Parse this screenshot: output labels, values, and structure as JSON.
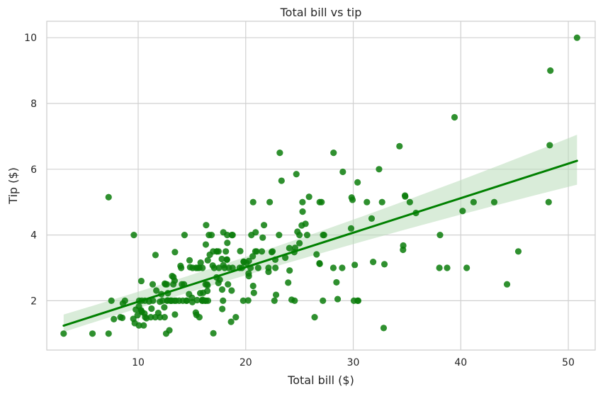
{
  "chart_data": {
    "type": "scatter",
    "title": "Total bill vs tip",
    "xlabel": "Total bill ($)",
    "ylabel": "Tip ($)",
    "xlim": [
      1.5,
      52.5
    ],
    "ylim": [
      0.5,
      10.5
    ],
    "xticks": [
      10,
      20,
      30,
      40,
      50
    ],
    "yticks": [
      2,
      4,
      6,
      8,
      10
    ],
    "grid": true,
    "point_color": "#0a7d0a",
    "line_color": "#008000",
    "band_color": "#b9dcb9",
    "points": [
      [
        3.07,
        1.0
      ],
      [
        5.75,
        1.0
      ],
      [
        7.25,
        1.0
      ],
      [
        7.25,
        5.15
      ],
      [
        7.51,
        2.0
      ],
      [
        7.74,
        1.44
      ],
      [
        8.35,
        1.5
      ],
      [
        8.52,
        1.48
      ],
      [
        8.58,
        1.92
      ],
      [
        8.77,
        2.0
      ],
      [
        9.55,
        1.45
      ],
      [
        9.6,
        4.0
      ],
      [
        9.68,
        1.32
      ],
      [
        9.78,
        1.73
      ],
      [
        9.94,
        1.56
      ],
      [
        10.07,
        1.83
      ],
      [
        10.07,
        1.25
      ],
      [
        10.09,
        2.0
      ],
      [
        10.27,
        1.71
      ],
      [
        10.29,
        2.6
      ],
      [
        10.33,
        1.67
      ],
      [
        10.34,
        2.0
      ],
      [
        10.34,
        1.66
      ],
      [
        10.51,
        1.25
      ],
      [
        10.59,
        1.61
      ],
      [
        10.63,
        2.0
      ],
      [
        10.65,
        1.5
      ],
      [
        10.77,
        1.47
      ],
      [
        11.02,
        1.98
      ],
      [
        11.17,
        1.5
      ],
      [
        11.24,
        1.76
      ],
      [
        11.35,
        2.5
      ],
      [
        11.38,
        2.0
      ],
      [
        11.59,
        1.5
      ],
      [
        11.61,
        3.39
      ],
      [
        11.69,
        2.31
      ],
      [
        11.87,
        1.63
      ],
      [
        12.02,
        1.97
      ],
      [
        12.03,
        1.5
      ],
      [
        12.16,
        2.2
      ],
      [
        12.26,
        2.0
      ],
      [
        12.43,
        1.8
      ],
      [
        12.46,
        1.5
      ],
      [
        12.48,
        2.52
      ],
      [
        12.54,
        2.5
      ],
      [
        12.6,
        1.0
      ],
      [
        12.66,
        2.5
      ],
      [
        12.69,
        2.0
      ],
      [
        12.74,
        2.01
      ],
      [
        12.76,
        2.23
      ],
      [
        12.9,
        1.1
      ],
      [
        13.0,
        2.0
      ],
      [
        13.03,
        2.0
      ],
      [
        13.13,
        2.0
      ],
      [
        13.16,
        2.75
      ],
      [
        13.27,
        2.5
      ],
      [
        13.28,
        2.72
      ],
      [
        13.37,
        2.0
      ],
      [
        13.39,
        2.61
      ],
      [
        13.42,
        1.58
      ],
      [
        13.42,
        3.48
      ],
      [
        13.51,
        2.0
      ],
      [
        13.81,
        2.0
      ],
      [
        13.94,
        3.06
      ],
      [
        14.0,
        3.0
      ],
      [
        14.07,
        2.5
      ],
      [
        14.15,
        2.0
      ],
      [
        14.26,
        2.5
      ],
      [
        14.31,
        4.0
      ],
      [
        14.48,
        2.0
      ],
      [
        14.52,
        2.0
      ],
      [
        14.73,
        2.2
      ],
      [
        14.78,
        3.23
      ],
      [
        14.83,
        3.02
      ],
      [
        15.01,
        2.09
      ],
      [
        15.04,
        1.96
      ],
      [
        15.06,
        3.0
      ],
      [
        15.36,
        1.64
      ],
      [
        15.38,
        3.0
      ],
      [
        15.42,
        1.57
      ],
      [
        15.48,
        2.02
      ],
      [
        15.53,
        3.0
      ],
      [
        15.69,
        1.5
      ],
      [
        15.69,
        3.0
      ],
      [
        15.77,
        2.23
      ],
      [
        15.81,
        3.16
      ],
      [
        15.95,
        2.0
      ],
      [
        15.98,
        2.03
      ],
      [
        15.98,
        3.0
      ],
      [
        16.0,
        2.0
      ],
      [
        16.04,
        2.24
      ],
      [
        16.21,
        2.0
      ],
      [
        16.27,
        2.5
      ],
      [
        16.29,
        3.71
      ],
      [
        16.31,
        2.0
      ],
      [
        16.32,
        4.3
      ],
      [
        16.4,
        2.5
      ],
      [
        16.43,
        2.3
      ],
      [
        16.45,
        2.47
      ],
      [
        16.47,
        3.23
      ],
      [
        16.49,
        2.0
      ],
      [
        16.58,
        4.0
      ],
      [
        16.66,
        3.4
      ],
      [
        16.82,
        4.0
      ],
      [
        16.93,
        3.07
      ],
      [
        16.97,
        3.5
      ],
      [
        16.99,
        1.01
      ],
      [
        17.07,
        3.0
      ],
      [
        17.29,
        2.71
      ],
      [
        17.31,
        3.5
      ],
      [
        17.46,
        2.54
      ],
      [
        17.47,
        3.5
      ],
      [
        17.51,
        3.0
      ],
      [
        17.59,
        2.64
      ],
      [
        17.78,
        3.27
      ],
      [
        17.81,
        2.34
      ],
      [
        17.82,
        1.75
      ],
      [
        17.89,
        2.0
      ],
      [
        17.92,
        4.08
      ],
      [
        17.92,
        3.08
      ],
      [
        18.04,
        3.0
      ],
      [
        18.15,
        3.5
      ],
      [
        18.24,
        3.25
      ],
      [
        18.26,
        3.25
      ],
      [
        18.28,
        4.0
      ],
      [
        18.29,
        3.76
      ],
      [
        18.35,
        2.5
      ],
      [
        18.43,
        3.0
      ],
      [
        18.64,
        1.36
      ],
      [
        18.69,
        2.31
      ],
      [
        18.71,
        4.0
      ],
      [
        18.78,
        3.0
      ],
      [
        19.08,
        1.5
      ],
      [
        19.44,
        3.0
      ],
      [
        19.49,
        3.51
      ],
      [
        19.65,
        3.0
      ],
      [
        19.77,
        2.0
      ],
      [
        19.81,
        3.19
      ],
      [
        19.82,
        3.18
      ],
      [
        20.08,
        3.15
      ],
      [
        20.23,
        2.01
      ],
      [
        20.27,
        2.83
      ],
      [
        20.29,
        2.75
      ],
      [
        20.29,
        3.21
      ],
      [
        20.45,
        3.0
      ],
      [
        20.53,
        4.0
      ],
      [
        20.65,
        3.35
      ],
      [
        20.69,
        2.45
      ],
      [
        20.76,
        2.24
      ],
      [
        20.9,
        3.5
      ],
      [
        20.92,
        4.08
      ],
      [
        20.69,
        5.0
      ],
      [
        21.01,
        3.5
      ],
      [
        21.16,
        3.0
      ],
      [
        21.5,
        3.5
      ],
      [
        21.58,
        3.92
      ],
      [
        21.7,
        4.3
      ],
      [
        22.12,
        2.88
      ],
      [
        22.23,
        5.0
      ],
      [
        22.42,
        3.48
      ],
      [
        22.49,
        3.5
      ],
      [
        22.67,
        2.0
      ],
      [
        22.75,
        3.25
      ],
      [
        22.76,
        3.0
      ],
      [
        22.82,
        2.18
      ],
      [
        23.1,
        4.0
      ],
      [
        23.17,
        6.5
      ],
      [
        23.33,
        5.65
      ],
      [
        23.68,
        3.31
      ],
      [
        23.95,
        2.55
      ],
      [
        24.06,
        3.6
      ],
      [
        24.08,
        2.92
      ],
      [
        24.27,
        2.03
      ],
      [
        24.52,
        3.48
      ],
      [
        24.55,
        2.0
      ],
      [
        24.59,
        3.61
      ],
      [
        24.71,
        5.85
      ],
      [
        25.0,
        3.75
      ],
      [
        25.21,
        4.29
      ],
      [
        25.28,
        5.0
      ],
      [
        25.29,
        4.71
      ],
      [
        25.56,
        4.34
      ],
      [
        25.71,
        4.0
      ],
      [
        25.89,
        5.16
      ],
      [
        26.41,
        1.5
      ],
      [
        26.59,
        3.41
      ],
      [
        26.86,
        3.14
      ],
      [
        26.88,
        3.12
      ],
      [
        27.05,
        5.0
      ],
      [
        27.18,
        2.0
      ],
      [
        27.2,
        4.0
      ],
      [
        27.28,
        4.0
      ],
      [
        28.15,
        3.0
      ],
      [
        28.17,
        6.5
      ],
      [
        28.44,
        2.56
      ],
      [
        28.55,
        2.05
      ],
      [
        28.97,
        3.0
      ],
      [
        29.03,
        5.92
      ],
      [
        29.8,
        4.2
      ],
      [
        29.85,
        5.14
      ],
      [
        30.06,
        2.0
      ],
      [
        30.14,
        3.09
      ],
      [
        30.4,
        2.0
      ],
      [
        30.46,
        2.0
      ],
      [
        30.4,
        5.6
      ],
      [
        31.27,
        5.0
      ],
      [
        31.71,
        4.5
      ],
      [
        31.85,
        3.18
      ],
      [
        32.4,
        6.0
      ],
      [
        32.68,
        5.0
      ],
      [
        32.83,
        1.17
      ],
      [
        32.9,
        3.11
      ],
      [
        34.3,
        6.7
      ],
      [
        34.63,
        3.55
      ],
      [
        34.65,
        3.68
      ],
      [
        34.81,
        5.2
      ],
      [
        35.26,
        5.0
      ],
      [
        35.83,
        4.67
      ],
      [
        38.01,
        3.0
      ],
      [
        38.07,
        4.0
      ],
      [
        38.73,
        3.0
      ],
      [
        39.42,
        7.58
      ],
      [
        40.17,
        4.73
      ],
      [
        40.55,
        3.0
      ],
      [
        41.19,
        5.0
      ],
      [
        43.11,
        5.0
      ],
      [
        44.3,
        2.5
      ],
      [
        45.35,
        3.5
      ],
      [
        48.17,
        5.0
      ],
      [
        48.27,
        6.73
      ],
      [
        48.33,
        9.0
      ],
      [
        50.81,
        10.0
      ],
      [
        34.83,
        5.17
      ],
      [
        29.93,
        5.07
      ],
      [
        17.31,
        3.5
      ],
      [
        18.78,
        4.0
      ],
      [
        25.0,
        4.0
      ],
      [
        26.88,
        5.0
      ],
      [
        24.81,
        4.1
      ],
      [
        22.12,
        3.0
      ]
    ],
    "regression": {
      "slope": 0.105,
      "intercept": 0.92,
      "x_range": [
        3.07,
        50.81
      ],
      "ci_lower": [
        1.05,
        5.53
      ],
      "ci_upper": [
        1.58,
        7.05
      ]
    }
  }
}
